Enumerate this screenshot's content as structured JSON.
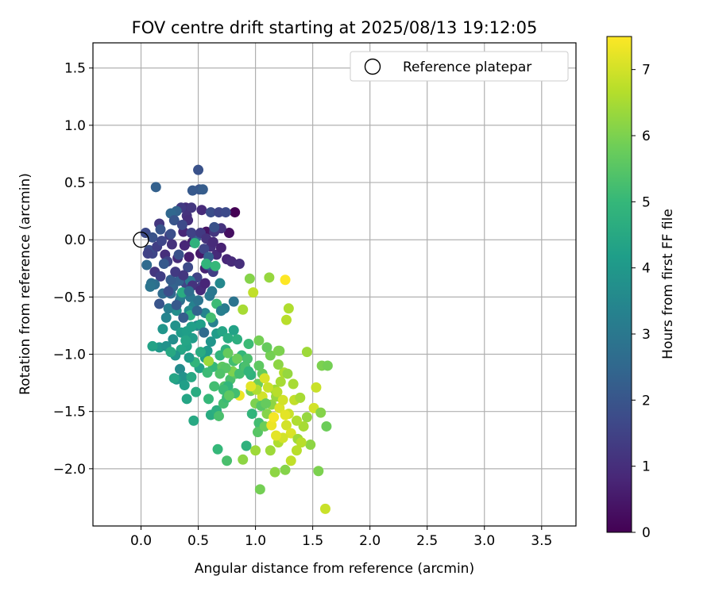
{
  "chart_data": {
    "type": "scatter",
    "title": "FOV centre drift starting at 2025/08/13 19:12:05",
    "xlabel": "Angular distance from reference (arcmin)",
    "ylabel": "Rotation from reference (arcmin)",
    "xlim": [
      -0.42,
      3.8
    ],
    "ylim": [
      -2.5,
      1.72
    ],
    "xticks": [
      0.0,
      0.5,
      1.0,
      1.5,
      2.0,
      2.5,
      3.0,
      3.5
    ],
    "xtick_labels": [
      "0.0",
      "0.5",
      "1.0",
      "1.5",
      "2.0",
      "2.5",
      "3.0",
      "3.5"
    ],
    "yticks": [
      1.5,
      1.0,
      0.5,
      0.0,
      -0.5,
      -1.0,
      -1.5,
      -2.0
    ],
    "ytick_labels": [
      "1.5",
      "1.0",
      "0.5",
      "0.0",
      "−0.5",
      "−1.0",
      "−1.5",
      "−2.0"
    ],
    "grid": true,
    "legend": {
      "placement": "top-right",
      "entries": [
        "Reference platepar"
      ]
    },
    "reference_point": {
      "label": "Reference platepar",
      "x": 0.0,
      "y": 0.0
    },
    "colorbar": {
      "label": "Hours from first FF file",
      "colormap": "viridis",
      "range": [
        0,
        7.5
      ],
      "ticks": [
        0,
        1,
        2,
        3,
        4,
        5,
        6,
        7
      ],
      "tick_labels": [
        "0",
        "1",
        "2",
        "3",
        "4",
        "5",
        "6",
        "7"
      ]
    },
    "colormap_stops": [
      "#440154",
      "#482878",
      "#3e4989",
      "#31688e",
      "#26828e",
      "#1f9e89",
      "#35b779",
      "#6ece58",
      "#b5de2b",
      "#fde725"
    ],
    "points": [
      [
        0.82,
        0.24,
        0.0
      ],
      [
        0.77,
        0.06,
        0.3
      ],
      [
        0.57,
        0.07,
        0.4
      ],
      [
        0.48,
        0.02,
        0.5
      ],
      [
        0.45,
        -0.02,
        0.6
      ],
      [
        0.52,
        -0.12,
        0.5
      ],
      [
        0.42,
        -0.15,
        0.6
      ],
      [
        0.38,
        -0.05,
        0.8
      ],
      [
        0.32,
        -0.16,
        0.9
      ],
      [
        0.56,
        -0.25,
        0.7
      ],
      [
        0.75,
        -0.17,
        0.8
      ],
      [
        0.79,
        -0.19,
        0.9
      ],
      [
        0.86,
        -0.21,
        1.0
      ],
      [
        0.66,
        -0.13,
        0.9
      ],
      [
        0.61,
        -0.06,
        1.0
      ],
      [
        0.37,
        0.07,
        0.8
      ],
      [
        0.53,
        0.26,
        0.9
      ],
      [
        0.39,
        0.28,
        1.0
      ],
      [
        0.44,
        0.28,
        1.2
      ],
      [
        0.35,
        0.28,
        1.3
      ],
      [
        0.4,
        0.21,
        1.1
      ],
      [
        0.41,
        0.17,
        1.0
      ],
      [
        0.7,
        0.1,
        1.1
      ],
      [
        0.64,
        0.07,
        1.2
      ],
      [
        0.16,
        0.14,
        1.2
      ],
      [
        0.25,
        0.04,
        1.3
      ],
      [
        0.27,
        -0.04,
        1.1
      ],
      [
        0.21,
        -0.13,
        1.0
      ],
      [
        0.12,
        -0.28,
        1.2
      ],
      [
        0.17,
        -0.32,
        1.4
      ],
      [
        0.23,
        -0.19,
        1.5
      ],
      [
        0.1,
        -0.12,
        1.6
      ],
      [
        0.04,
        0.06,
        1.7
      ],
      [
        0.07,
        -0.09,
        1.8
      ],
      [
        0.1,
        0.02,
        1.9
      ],
      [
        0.17,
        0.09,
        2.0
      ],
      [
        0.26,
        0.05,
        1.8
      ],
      [
        0.33,
        -0.13,
        1.9
      ],
      [
        0.41,
        -0.24,
        1.7
      ],
      [
        0.39,
        -0.38,
        1.6
      ],
      [
        0.49,
        -0.33,
        1.5
      ],
      [
        0.53,
        -0.41,
        1.3
      ],
      [
        0.63,
        -0.28,
        1.4
      ],
      [
        0.55,
        -0.08,
        1.6
      ],
      [
        0.64,
        0.11,
        1.9
      ],
      [
        0.61,
        0.24,
        1.8
      ],
      [
        0.68,
        0.24,
        1.6
      ],
      [
        0.74,
        0.24,
        1.7
      ],
      [
        0.51,
        0.44,
        2.0
      ],
      [
        0.45,
        0.43,
        2.1
      ],
      [
        0.5,
        0.61,
        1.9
      ],
      [
        0.54,
        0.44,
        2.2
      ],
      [
        0.13,
        0.46,
        2.3
      ],
      [
        0.31,
        0.25,
        2.4
      ],
      [
        0.26,
        0.23,
        2.5
      ],
      [
        0.48,
        0.02,
        2.2
      ],
      [
        0.59,
        -0.15,
        2.3
      ],
      [
        0.58,
        -0.22,
        2.4
      ],
      [
        0.2,
        -0.21,
        2.1
      ],
      [
        0.05,
        -0.22,
        2.6
      ],
      [
        0.12,
        -0.39,
        2.7
      ],
      [
        0.09,
        -0.38,
        2.8
      ],
      [
        0.08,
        -0.41,
        2.9
      ],
      [
        0.19,
        -0.47,
        2.6
      ],
      [
        0.26,
        -0.47,
        2.5
      ],
      [
        0.28,
        -0.41,
        2.4
      ],
      [
        0.33,
        -0.36,
        2.3
      ],
      [
        0.26,
        -0.35,
        2.2
      ],
      [
        0.34,
        -0.53,
        2.8
      ],
      [
        0.43,
        -0.5,
        3.0
      ],
      [
        0.43,
        -0.36,
        3.1
      ],
      [
        0.35,
        -0.49,
        3.2
      ],
      [
        0.46,
        -0.58,
        3.3
      ],
      [
        0.56,
        -0.64,
        3.4
      ],
      [
        0.6,
        -0.49,
        3.0
      ],
      [
        0.69,
        -0.38,
        3.5
      ],
      [
        0.81,
        -0.54,
        2.9
      ],
      [
        0.73,
        -0.6,
        3.1
      ],
      [
        0.63,
        -0.72,
        3.3
      ],
      [
        0.49,
        -0.75,
        3.5
      ],
      [
        0.42,
        -0.62,
        3.6
      ],
      [
        0.31,
        -0.62,
        3.7
      ],
      [
        0.22,
        -0.68,
        3.4
      ],
      [
        0.24,
        -0.6,
        3.2
      ],
      [
        0.3,
        -0.75,
        3.8
      ],
      [
        0.19,
        -0.78,
        3.9
      ],
      [
        0.16,
        -0.94,
        4.0
      ],
      [
        0.22,
        -0.93,
        3.8
      ],
      [
        0.28,
        -0.87,
        3.7
      ],
      [
        0.35,
        -0.81,
        4.1
      ],
      [
        0.4,
        -0.8,
        4.2
      ],
      [
        0.45,
        -0.86,
        4.1
      ],
      [
        0.4,
        -0.93,
        4.3
      ],
      [
        0.35,
        -0.96,
        4.4
      ],
      [
        0.3,
        -1.01,
        3.9
      ],
      [
        0.34,
        -1.13,
        3.6
      ],
      [
        0.37,
        -1.2,
        3.8
      ],
      [
        0.31,
        -1.22,
        4.0
      ],
      [
        0.38,
        -1.27,
        4.2
      ],
      [
        0.4,
        -1.39,
        4.4
      ],
      [
        0.44,
        -1.2,
        4.5
      ],
      [
        0.48,
        -1.33,
        4.6
      ],
      [
        0.46,
        -1.58,
        4.5
      ],
      [
        0.51,
        -1.12,
        4.3
      ],
      [
        0.56,
        -1.03,
        4.2
      ],
      [
        0.58,
        -0.97,
        4.0
      ],
      [
        0.61,
        -0.89,
        3.9
      ],
      [
        0.66,
        -0.82,
        4.1
      ],
      [
        0.71,
        -0.8,
        4.4
      ],
      [
        0.76,
        -0.86,
        4.6
      ],
      [
        0.81,
        -0.79,
        4.3
      ],
      [
        0.84,
        -0.87,
        4.7
      ],
      [
        0.74,
        -0.96,
        4.8
      ],
      [
        0.69,
        -1.01,
        4.9
      ],
      [
        0.63,
        -1.11,
        5.0
      ],
      [
        0.58,
        -1.16,
        5.1
      ],
      [
        0.64,
        -1.28,
        5.2
      ],
      [
        0.59,
        -1.39,
        5.0
      ],
      [
        0.61,
        -1.53,
        4.6
      ],
      [
        0.66,
        -1.49,
        4.7
      ],
      [
        0.68,
        -1.54,
        5.3
      ],
      [
        0.72,
        -1.43,
        5.2
      ],
      [
        0.75,
        -1.38,
        5.1
      ],
      [
        0.73,
        -1.28,
        5.4
      ],
      [
        0.78,
        -1.22,
        5.3
      ],
      [
        0.83,
        -1.17,
        5.5
      ],
      [
        0.81,
        -1.06,
        5.2
      ],
      [
        0.88,
        -1.01,
        5.0
      ],
      [
        0.93,
        -1.04,
        5.3
      ],
      [
        0.94,
        -0.91,
        5.1
      ],
      [
        0.9,
        -1.11,
        4.7
      ],
      [
        0.96,
        -1.18,
        4.8
      ],
      [
        1.03,
        -1.1,
        5.6
      ],
      [
        1.06,
        -1.17,
        5.7
      ],
      [
        1.02,
        -1.26,
        5.8
      ],
      [
        0.96,
        -1.32,
        5.9
      ],
      [
        1.0,
        -1.43,
        6.0
      ],
      [
        0.97,
        -1.52,
        4.9
      ],
      [
        1.03,
        -1.6,
        5.2
      ],
      [
        1.02,
        -1.68,
        5.5
      ],
      [
        1.08,
        -1.63,
        5.8
      ],
      [
        1.1,
        -1.52,
        6.1
      ],
      [
        1.14,
        -1.44,
        6.2
      ],
      [
        1.18,
        -1.37,
        6.3
      ],
      [
        1.17,
        -1.31,
        6.4
      ],
      [
        1.22,
        -1.24,
        6.5
      ],
      [
        1.25,
        -1.16,
        6.6
      ],
      [
        1.2,
        -1.09,
        6.2
      ],
      [
        1.13,
        -1.01,
        5.9
      ],
      [
        1.1,
        -0.94,
        5.7
      ],
      [
        1.03,
        -0.88,
        5.9
      ],
      [
        1.21,
        -0.97,
        6.0
      ],
      [
        1.28,
        -1.17,
        6.3
      ],
      [
        1.33,
        -1.26,
        6.5
      ],
      [
        1.34,
        -1.4,
        6.8
      ],
      [
        1.29,
        -1.52,
        6.9
      ],
      [
        1.27,
        -1.62,
        7.0
      ],
      [
        1.31,
        -1.69,
        7.1
      ],
      [
        1.37,
        -1.74,
        6.4
      ],
      [
        1.36,
        -1.84,
        6.7
      ],
      [
        1.31,
        -1.93,
        6.8
      ],
      [
        1.26,
        -2.01,
        6.1
      ],
      [
        1.17,
        -2.03,
        6.2
      ],
      [
        1.13,
        -1.84,
        6.4
      ],
      [
        1.2,
        -1.77,
        6.6
      ],
      [
        1.24,
        -1.73,
        7.0
      ],
      [
        1.18,
        -1.71,
        7.2
      ],
      [
        1.14,
        -1.62,
        7.3
      ],
      [
        1.16,
        -1.55,
        7.4
      ],
      [
        1.21,
        -1.47,
        7.1
      ],
      [
        1.26,
        -1.53,
        7.2
      ],
      [
        1.24,
        -1.4,
        7.0
      ],
      [
        1.19,
        -1.33,
        6.7
      ],
      [
        1.11,
        -1.29,
        6.9
      ],
      [
        1.06,
        -1.37,
        7.0
      ],
      [
        1.08,
        -1.21,
        7.1
      ],
      [
        1.01,
        -1.31,
        6.6
      ],
      [
        0.96,
        -1.28,
        7.2
      ],
      [
        0.86,
        -1.36,
        7.3
      ],
      [
        0.95,
        -0.34,
        6.1
      ],
      [
        1.12,
        -0.33,
        6.3
      ],
      [
        1.26,
        -0.35,
        7.5
      ],
      [
        0.98,
        -0.46,
        6.8
      ],
      [
        0.89,
        -0.61,
        6.5
      ],
      [
        1.29,
        -0.6,
        6.6
      ],
      [
        1.27,
        -0.7,
        6.7
      ],
      [
        1.2,
        -0.97,
        6.0
      ],
      [
        1.45,
        -0.98,
        6.4
      ],
      [
        1.58,
        -1.1,
        6.0
      ],
      [
        1.63,
        -1.1,
        5.9
      ],
      [
        1.53,
        -1.29,
        6.9
      ],
      [
        1.51,
        -1.47,
        7.0
      ],
      [
        1.57,
        -1.51,
        6.1
      ],
      [
        1.62,
        -1.63,
        5.8
      ],
      [
        1.45,
        -1.55,
        6.3
      ],
      [
        1.42,
        -1.63,
        6.5
      ],
      [
        1.48,
        -1.79,
        6.2
      ],
      [
        1.4,
        -1.77,
        6.7
      ],
      [
        1.36,
        -1.58,
        6.6
      ],
      [
        1.39,
        -1.38,
        6.5
      ],
      [
        1.55,
        -2.02,
        6.0
      ],
      [
        1.61,
        -2.35,
        6.9
      ],
      [
        1.04,
        -2.18,
        5.9
      ],
      [
        0.75,
        -1.93,
        5.3
      ],
      [
        0.67,
        -1.83,
        5.0
      ],
      [
        0.89,
        -1.92,
        6.2
      ],
      [
        0.92,
        -1.8,
        4.8
      ],
      [
        1.0,
        -1.84,
        6.4
      ],
      [
        0.71,
        -1.11,
        5.6
      ],
      [
        0.76,
        -0.99,
        5.7
      ],
      [
        0.84,
        -1.04,
        5.8
      ],
      [
        0.8,
        -1.15,
        6.0
      ],
      [
        0.59,
        -1.06,
        6.4
      ],
      [
        0.52,
        -0.98,
        4.6
      ],
      [
        0.47,
        -1.07,
        4.9
      ],
      [
        0.44,
        -0.76,
        4.2
      ],
      [
        0.47,
        -0.03,
        4.8
      ],
      [
        0.57,
        -0.21,
        4.9
      ],
      [
        0.65,
        -0.23,
        5.0
      ],
      [
        0.66,
        -0.56,
        5.1
      ],
      [
        0.61,
        -0.68,
        5.2
      ],
      [
        0.43,
        -0.66,
        4.7
      ],
      [
        0.36,
        -0.46,
        4.6
      ],
      [
        0.39,
        -0.88,
        4.4
      ],
      [
        0.26,
        -0.98,
        4.5
      ],
      [
        0.1,
        -0.93,
        4.3
      ],
      [
        0.29,
        -1.21,
        4.4
      ],
      [
        0.42,
        -1.03,
        4.1
      ],
      [
        0.52,
        -0.74,
        4.2
      ],
      [
        0.86,
        -1.17,
        5.2
      ],
      [
        0.74,
        -1.12,
        5.5
      ],
      [
        0.91,
        -1.11,
        5.3
      ],
      [
        1.05,
        -1.45,
        5.5
      ],
      [
        1.09,
        -1.43,
        5.7
      ],
      [
        0.94,
        -1.15,
        4.9
      ],
      [
        0.69,
        -1.17,
        5.4
      ],
      [
        0.76,
        -1.28,
        4.9
      ],
      [
        0.72,
        -1.31,
        5.1
      ],
      [
        0.82,
        -1.34,
        5.2
      ],
      [
        0.77,
        -1.36,
        5.6
      ],
      [
        0.14,
        -0.06,
        1.4
      ],
      [
        0.06,
        -0.12,
        1.5
      ],
      [
        0.18,
        -0.01,
        1.6
      ],
      [
        0.29,
        0.17,
        2.0
      ],
      [
        0.36,
        0.13,
        1.7
      ],
      [
        0.44,
        0.06,
        1.5
      ],
      [
        0.52,
        0.06,
        1.3
      ],
      [
        0.57,
        0.01,
        1.1
      ],
      [
        0.63,
        -0.02,
        0.9
      ],
      [
        0.7,
        -0.07,
        0.7
      ],
      [
        0.3,
        -0.28,
        1.3
      ],
      [
        0.37,
        -0.31,
        1.2
      ],
      [
        0.45,
        -0.4,
        1.1
      ],
      [
        0.52,
        -0.44,
        0.9
      ],
      [
        0.56,
        -0.38,
        0.8
      ],
      [
        0.24,
        -0.45,
        1.8
      ],
      [
        0.16,
        -0.56,
        2.0
      ],
      [
        0.31,
        -0.57,
        2.1
      ],
      [
        0.37,
        -0.68,
        2.2
      ],
      [
        0.49,
        -0.62,
        2.4
      ],
      [
        0.55,
        -0.81,
        2.6
      ],
      [
        0.42,
        -0.45,
        2.7
      ],
      [
        0.5,
        -0.53,
        2.9
      ],
      [
        0.62,
        -0.45,
        3.0
      ],
      [
        0.7,
        -0.62,
        3.2
      ]
    ]
  }
}
